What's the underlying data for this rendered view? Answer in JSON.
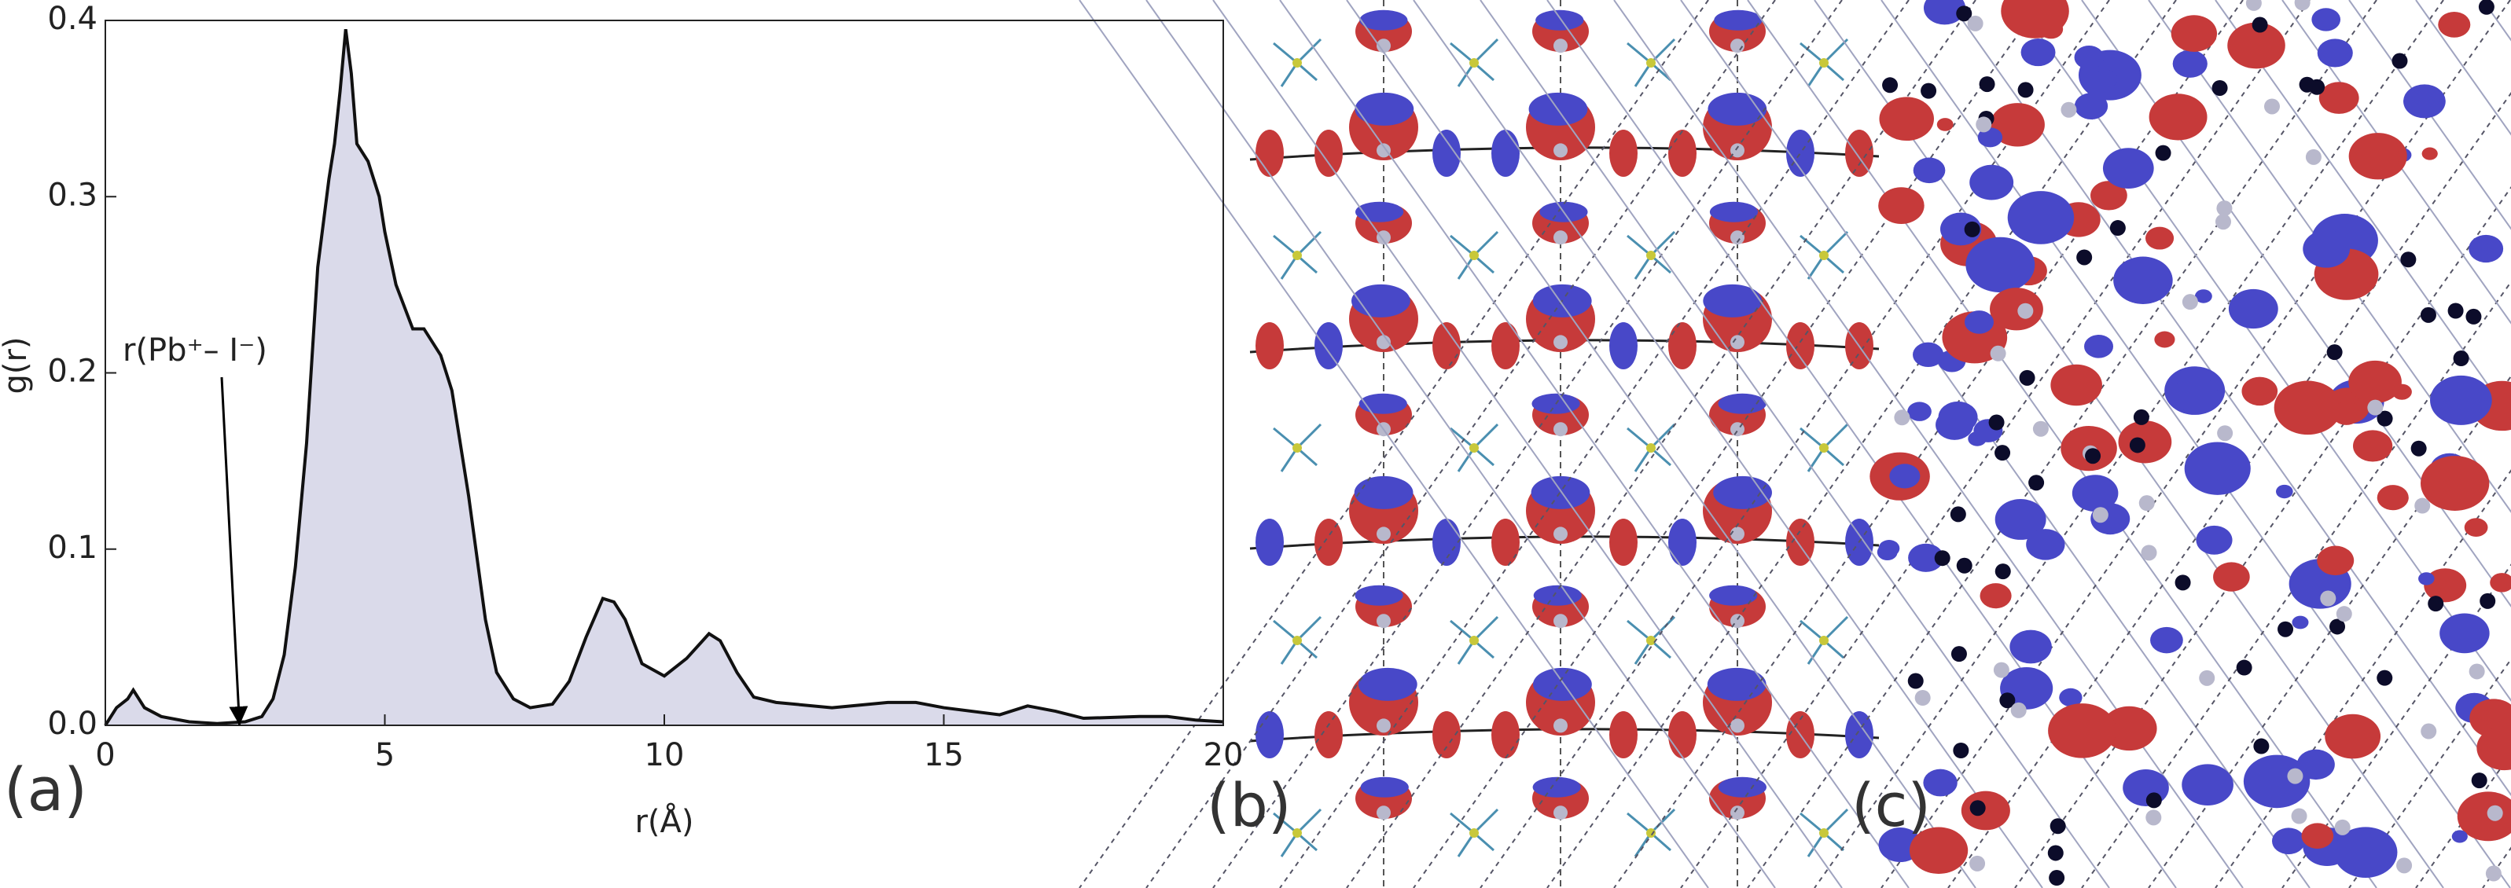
{
  "chart_data": {
    "type": "area",
    "x": [
      0,
      0.2,
      0.4,
      0.5,
      0.7,
      1.0,
      1.5,
      2.0,
      2.5,
      2.8,
      3.0,
      3.2,
      3.4,
      3.6,
      3.8,
      4.0,
      4.1,
      4.2,
      4.3,
      4.4,
      4.5,
      4.7,
      4.9,
      5.0,
      5.2,
      5.5,
      5.7,
      6.0,
      6.2,
      6.5,
      6.8,
      7.0,
      7.3,
      7.6,
      8.0,
      8.3,
      8.6,
      8.9,
      9.1,
      9.3,
      9.6,
      10.0,
      10.4,
      10.8,
      11.0,
      11.3,
      11.6,
      12.0,
      13.0,
      14.0,
      14.5,
      15.0,
      16.0,
      16.5,
      17.0,
      17.5,
      18.5,
      19.0,
      19.5,
      20.0
    ],
    "values": [
      0.0,
      0.01,
      0.015,
      0.02,
      0.01,
      0.005,
      0.002,
      0.001,
      0.002,
      0.005,
      0.015,
      0.04,
      0.09,
      0.16,
      0.26,
      0.31,
      0.33,
      0.36,
      0.395,
      0.37,
      0.33,
      0.32,
      0.3,
      0.28,
      0.25,
      0.225,
      0.225,
      0.21,
      0.19,
      0.13,
      0.06,
      0.03,
      0.015,
      0.01,
      0.012,
      0.025,
      0.05,
      0.072,
      0.07,
      0.06,
      0.035,
      0.028,
      0.038,
      0.052,
      0.048,
      0.03,
      0.016,
      0.013,
      0.01,
      0.013,
      0.013,
      0.01,
      0.006,
      0.011,
      0.008,
      0.004,
      0.005,
      0.005,
      0.003,
      0.002
    ],
    "color": "#dadaea",
    "line_color": "#111111",
    "xlabel": "r(Å)",
    "ylabel": "g(r)",
    "xlim": [
      0,
      20
    ],
    "ylim": [
      0,
      0.4
    ],
    "xticks": [
      0,
      5,
      10,
      15,
      20
    ],
    "yticks": [
      {
        "value": 0,
        "label": "0.0"
      },
      0.1,
      0.2,
      0.3,
      0.4
    ],
    "annotations": [
      {
        "text": "r(Pb⁺– I⁻)",
        "x": 2.4,
        "y": 0
      }
    ]
  },
  "panels": [
    "(a)",
    "(b)",
    "(c)"
  ]
}
